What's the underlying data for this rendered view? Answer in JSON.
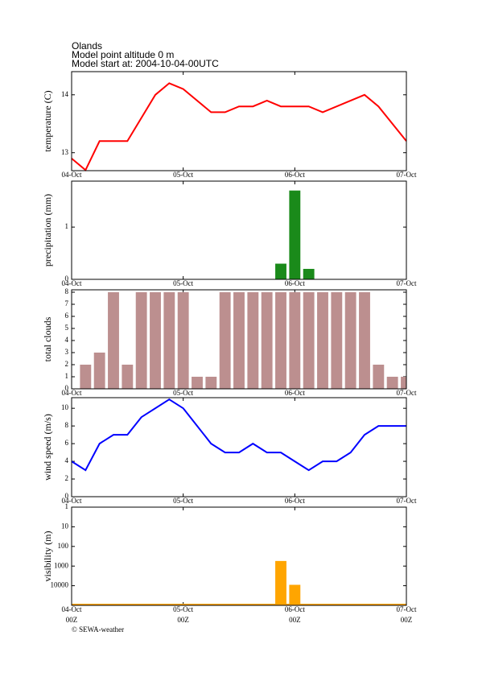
{
  "title_lines": [
    "Olands",
    "Model point altitude  0 m",
    "Model start at: 2004-10-04-00UTC"
  ],
  "credit": "© SEWA-weather",
  "chart_data": [
    {
      "type": "line",
      "ylabel": "temperature (C)",
      "color": "#ff0000",
      "x": [
        0,
        3,
        6,
        12,
        18,
        21,
        24,
        30,
        33,
        36,
        39,
        42,
        45,
        48,
        51,
        54,
        63,
        66,
        72
      ],
      "values": [
        12.9,
        12.7,
        13.2,
        13.2,
        14.0,
        14.2,
        14.1,
        13.7,
        13.7,
        13.8,
        13.8,
        13.9,
        13.8,
        13.8,
        13.8,
        13.7,
        14.0,
        13.8,
        13.2
      ],
      "xlim": [
        0,
        72
      ],
      "ylim": [
        12.69,
        14.4
      ],
      "yticks": [
        13,
        14
      ],
      "xticks": [
        {
          "value": 0,
          "label": "04-Oct"
        },
        {
          "value": 24,
          "label": "05-Oct"
        },
        {
          "value": 48,
          "label": "06-Oct"
        },
        {
          "value": 72,
          "label": "07-Oct"
        }
      ]
    },
    {
      "type": "bar",
      "ylabel": "precipitation (mm)",
      "color": "#1a8a1a",
      "x": [
        45,
        48,
        51
      ],
      "values": [
        0.3,
        1.7,
        0.2
      ],
      "xlim": [
        0,
        72
      ],
      "ylim": [
        0,
        1.88
      ],
      "yticks": [
        0,
        1
      ],
      "xticks": [
        {
          "value": 0,
          "label": "04-Oct"
        },
        {
          "value": 24,
          "label": "05-Oct"
        },
        {
          "value": 48,
          "label": "06-Oct"
        },
        {
          "value": 72,
          "label": "07-Oct"
        }
      ]
    },
    {
      "type": "bar",
      "ylabel": "total clouds",
      "color": "#bc8f8f",
      "x": [
        3,
        6,
        9,
        12,
        15,
        18,
        21,
        24,
        27,
        30,
        33,
        36,
        39,
        42,
        45,
        48,
        51,
        54,
        57,
        60,
        63,
        66,
        69,
        72
      ],
      "values": [
        2,
        3,
        8,
        2,
        8,
        8,
        8,
        8,
        1,
        1,
        8,
        8,
        8,
        8,
        8,
        8,
        8,
        8,
        8,
        8,
        8,
        2,
        1,
        1
      ],
      "xlim": [
        0,
        72
      ],
      "ylim": [
        0,
        8.2
      ],
      "yticks": [
        0,
        1,
        2,
        3,
        4,
        5,
        6,
        7,
        8
      ],
      "xticks": [
        {
          "value": 0,
          "label": "04-Oct"
        },
        {
          "value": 24,
          "label": "05-Oct"
        },
        {
          "value": 48,
          "label": "06-Oct"
        },
        {
          "value": 72,
          "label": "07-Oct"
        }
      ]
    },
    {
      "type": "line",
      "ylabel": "wind speed (m/s)",
      "color": "#0000ff",
      "x": [
        0,
        3,
        6,
        9,
        12,
        15,
        21,
        24,
        27,
        30,
        33,
        36,
        39,
        42,
        45,
        48,
        51,
        54,
        57,
        60,
        63,
        66,
        69,
        72
      ],
      "values": [
        4,
        3,
        6,
        7,
        7,
        9,
        11,
        10,
        8,
        6,
        5,
        5,
        6,
        5,
        5,
        4,
        3,
        4,
        4,
        5,
        7,
        8,
        8,
        8
      ],
      "xlim": [
        0,
        72
      ],
      "ylim": [
        0,
        11.2
      ],
      "yticks": [
        0,
        2,
        4,
        6,
        8,
        10
      ],
      "xticks": [
        {
          "value": 0,
          "label": "04-Oct"
        },
        {
          "value": 24,
          "label": "05-Oct"
        },
        {
          "value": 48,
          "label": "06-Oct"
        },
        {
          "value": 72,
          "label": "07-Oct"
        }
      ]
    },
    {
      "type": "bar",
      "ylabel": "visibility (m)",
      "color": "#ffa500",
      "log_scale": true,
      "x": [
        45,
        48
      ],
      "values": [
        550,
        9000
      ],
      "xlim": [
        0,
        72
      ],
      "ylim": [
        100000,
        1
      ],
      "yticks": [
        1,
        10,
        100,
        1000,
        10000
      ],
      "xticks": [
        {
          "value": 0,
          "label": "04-Oct"
        },
        {
          "value": 24,
          "label": "05-Oct"
        },
        {
          "value": 48,
          "label": "06-Oct"
        },
        {
          "value": 72,
          "label": "07-Oct"
        }
      ],
      "xtick_sublabels": [
        "00Z",
        "00Z",
        "00Z",
        "00Z"
      ]
    }
  ]
}
